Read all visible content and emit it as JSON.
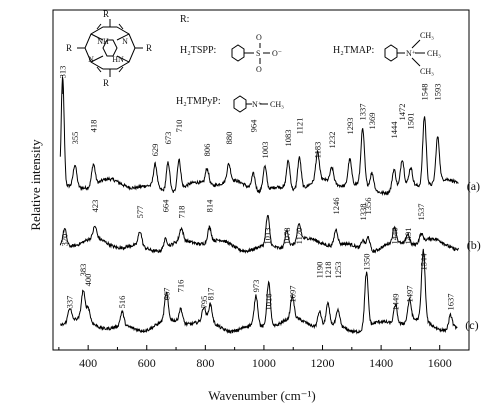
{
  "chart_data": {
    "type": "line",
    "xlabel": "Wavenumber (cm⁻¹)",
    "ylabel": "Relative intensity",
    "xlim": [
      280,
      1700
    ],
    "xticks": [
      400,
      600,
      800,
      1000,
      1200,
      1400,
      1600
    ],
    "y_scale": "arbitrary units (offset traces)",
    "legend_text": "R:",
    "compounds": [
      {
        "name": "H₂TSPP:",
        "group": "SO₃⁻"
      },
      {
        "name": "H₂TMAP:",
        "group": "N⁺(CH₃)₃"
      },
      {
        "name": "H₂TMPyP:",
        "group": "N⁺–CH₃"
      }
    ],
    "series": [
      {
        "name": "(a)",
        "peaks": [
          313,
          355,
          418,
          629,
          673,
          710,
          806,
          880,
          964,
          1003,
          1083,
          1121,
          1183,
          1232,
          1293,
          1337,
          1369,
          1444,
          1472,
          1501,
          1548,
          1593
        ]
      },
      {
        "name": "(b)",
        "peaks": [
          320,
          423,
          577,
          664,
          718,
          814,
          1013,
          1078,
          1120,
          1246,
          1338,
          1356,
          1446,
          1491,
          1537
        ]
      },
      {
        "name": "(c)",
        "peaks": [
          337,
          383,
          400,
          516,
          667,
          716,
          795,
          817,
          973,
          1016,
          1097,
          1190,
          1218,
          1253,
          1350,
          1449,
          1497,
          1544,
          1637
        ]
      }
    ]
  }
}
